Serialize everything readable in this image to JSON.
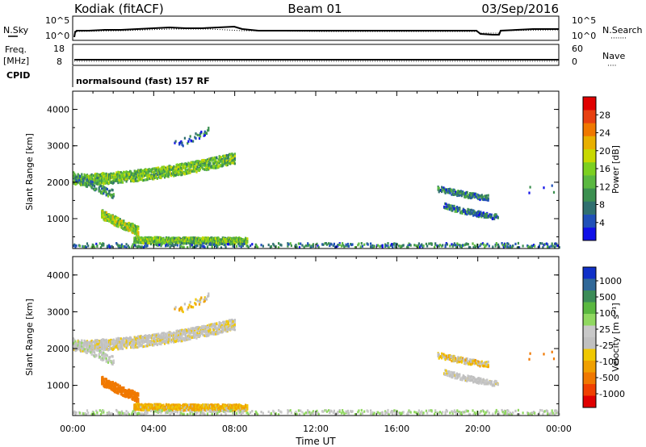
{
  "header": {
    "station": "Kodiak (fitACF)",
    "beam": "Beam 01",
    "date": "03/Sep/2016"
  },
  "sky_panel": {
    "left_label": "N.Sky",
    "right_label": "N.Search",
    "left_ticks": [
      "10^5",
      "10^0"
    ],
    "right_ticks": [
      "10^5",
      "10^0"
    ],
    "legend_symbol": "·······"
  },
  "freq_panel": {
    "left_label_top": "Freq.",
    "left_label_bottom": "[MHz]",
    "right_label": "Nave",
    "left_ticks": [
      "18",
      "8"
    ],
    "right_ticks": [
      "60",
      "0"
    ],
    "legend_symbol": "····"
  },
  "cpid_panel": {
    "label": "CPID",
    "text": "normalsound (fast) 157 RF"
  },
  "chart_data": [
    {
      "type": "heatmap",
      "name": "power",
      "ylabel": "Slant Range [km]",
      "yticks": [
        "1000",
        "2000",
        "3000",
        "4000"
      ],
      "ylim": [
        180,
        4500
      ],
      "xlim": [
        0,
        24
      ],
      "colorbar_label": "Power [dB]",
      "colorbar_ticks": [
        "28",
        "24",
        "20",
        "16",
        "12",
        "8",
        "4"
      ],
      "colorbar_colors": [
        "#1010e8",
        "#2050b8",
        "#307070",
        "#3c9050",
        "#5ab840",
        "#7cd020",
        "#c8d800",
        "#e8b000",
        "#f07800",
        "#e84010",
        "#e00000"
      ],
      "features": [
        {
          "t0": 0.0,
          "t1": 8.0,
          "r0": 2100,
          "r1": 2700,
          "r2": 2150,
          "thick": 300,
          "dense": 1.0,
          "val": 14
        },
        {
          "t0": 0.0,
          "t1": 2.0,
          "r0": 2200,
          "r1": 1700,
          "r2": 1900,
          "thick": 220,
          "dense": 0.6,
          "val": 10
        },
        {
          "t0": 1.4,
          "t1": 3.2,
          "r0": 1150,
          "r1": 700,
          "r2": 900,
          "thick": 250,
          "dense": 1.0,
          "val": 16
        },
        {
          "t0": 3.0,
          "t1": 8.6,
          "r0": 450,
          "r1": 430,
          "r2": 420,
          "thick": 170,
          "dense": 1.0,
          "val": 14
        },
        {
          "t0": 0.0,
          "t1": 24.0,
          "r0": 300,
          "r1": 300,
          "r2": 300,
          "thick": 120,
          "dense": 0.28,
          "val": 8
        },
        {
          "t0": 5.0,
          "t1": 6.7,
          "r0": 3050,
          "r1": 3450,
          "r2": 3200,
          "thick": 200,
          "dense": 0.3,
          "val": 6
        },
        {
          "t0": 18.0,
          "t1": 20.5,
          "r0": 1850,
          "r1": 1600,
          "r2": 1680,
          "thick": 150,
          "dense": 0.6,
          "val": 8
        },
        {
          "t0": 18.3,
          "t1": 21.0,
          "r0": 1380,
          "r1": 1060,
          "r2": 1180,
          "thick": 150,
          "dense": 0.6,
          "val": 7
        },
        {
          "t0": 22.5,
          "t1": 24.0,
          "r0": 1750,
          "r1": 1800,
          "r2": 1900,
          "thick": 300,
          "dense": 0.15,
          "val": 6
        }
      ]
    },
    {
      "type": "heatmap",
      "name": "velocity",
      "ylabel": "Slant Range [km]",
      "yticks": [
        "1000",
        "2000",
        "3000",
        "4000"
      ],
      "ylim": [
        180,
        4500
      ],
      "xlim": [
        0,
        24
      ],
      "xlabel": "Time UT",
      "xticks": [
        "00:00",
        "04:00",
        "08:00",
        "12:00",
        "16:00",
        "20:00",
        "00:00"
      ],
      "colorbar_label": "Velocity [m s⁻¹]",
      "colorbar_ticks": [
        "1000",
        "500",
        "100",
        "25",
        "-25",
        "-100",
        "-500",
        "-1000"
      ],
      "colorbar_colors": [
        "#1030c8",
        "#306898",
        "#3c8c58",
        "#5ab840",
        "#90d860",
        "#c8c8c8",
        "#c0c0c0",
        "#f0c800",
        "#f0a000",
        "#f07800",
        "#f04000",
        "#e00000"
      ],
      "features": [
        {
          "t0": 0.0,
          "t1": 8.0,
          "r0": 2100,
          "r1": 2700,
          "r2": 2150,
          "thick": 300,
          "dense": 1.0,
          "val": 0
        },
        {
          "t0": 0.0,
          "t1": 2.0,
          "r0": 2200,
          "r1": 1700,
          "r2": 1900,
          "thick": 220,
          "dense": 0.6,
          "val": 30
        },
        {
          "t0": 1.4,
          "t1": 3.2,
          "r0": 1150,
          "r1": 700,
          "r2": 900,
          "thick": 250,
          "dense": 1.0,
          "val": -150
        },
        {
          "t0": 3.0,
          "t1": 8.6,
          "r0": 450,
          "r1": 430,
          "r2": 420,
          "thick": 170,
          "dense": 1.0,
          "val": -60
        },
        {
          "t0": 0.0,
          "t1": 24.0,
          "r0": 300,
          "r1": 300,
          "r2": 300,
          "thick": 120,
          "dense": 0.28,
          "val": 40
        },
        {
          "t0": 5.0,
          "t1": 6.7,
          "r0": 3050,
          "r1": 3450,
          "r2": 3200,
          "thick": 200,
          "dense": 0.3,
          "val": -40
        },
        {
          "t0": 18.0,
          "t1": 20.5,
          "r0": 1850,
          "r1": 1600,
          "r2": 1680,
          "thick": 150,
          "dense": 0.6,
          "val": -30
        },
        {
          "t0": 18.3,
          "t1": 21.0,
          "r0": 1380,
          "r1": 1060,
          "r2": 1180,
          "thick": 150,
          "dense": 0.6,
          "val": 10
        },
        {
          "t0": 22.5,
          "t1": 24.0,
          "r0": 1750,
          "r1": 1800,
          "r2": 1900,
          "thick": 300,
          "dense": 0.15,
          "val": -200
        }
      ]
    }
  ]
}
